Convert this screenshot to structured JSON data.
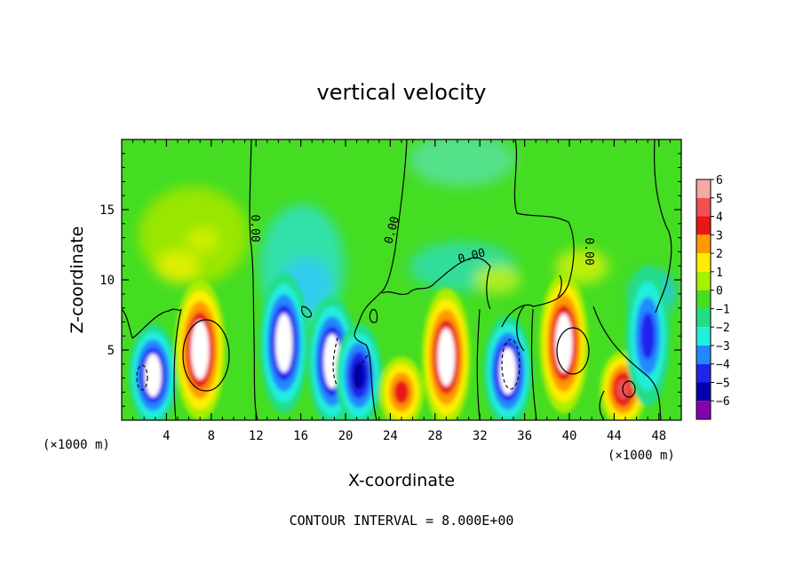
{
  "chart_data": {
    "type": "heatmap",
    "title": "vertical velocity",
    "xlabel": "X-coordinate",
    "ylabel": "Z-coordinate",
    "x_unit": "(×1000 m)",
    "x_ticks": [
      4,
      8,
      12,
      16,
      20,
      24,
      28,
      32,
      36,
      40,
      44,
      48
    ],
    "y_ticks": [
      5,
      10,
      15
    ],
    "xlim": [
      0,
      50
    ],
    "ylim": [
      0,
      20
    ],
    "colorbar": {
      "levels": [
        6,
        5,
        4,
        3,
        2,
        1,
        0,
        -1,
        -2,
        -3,
        -4,
        -5,
        -6
      ],
      "labels": [
        "6",
        "5",
        "4",
        "3",
        "2",
        "1",
        "0",
        "−1",
        "−2",
        "−3",
        "−4",
        "−5",
        "−6"
      ],
      "colors": [
        "#f4a8a8",
        "#f05050",
        "#e81818",
        "#ff9900",
        "#ffee00",
        "#aaee00",
        "#44dd22",
        "#22dd88",
        "#22eedd",
        "#2288ff",
        "#2222ee",
        "#0000aa",
        "#8800aa"
      ]
    },
    "contour_labels": [
      "0.00",
      "0.00",
      "0.00",
      "0.00",
      "0.00"
    ],
    "features": [
      {
        "x": 2.8,
        "z": 3.2,
        "w": -6
      },
      {
        "x": 7.0,
        "z": 5.0,
        "w": 7
      },
      {
        "x": 14.5,
        "z": 5.5,
        "w": -6
      },
      {
        "x": 18.8,
        "z": 4.2,
        "w": -6
      },
      {
        "x": 21.2,
        "z": 3.2,
        "w": -5
      },
      {
        "x": 25.0,
        "z": 2.0,
        "w": 4
      },
      {
        "x": 29.0,
        "z": 4.5,
        "w": 6
      },
      {
        "x": 34.5,
        "z": 3.5,
        "w": -6
      },
      {
        "x": 39.5,
        "z": 5.5,
        "w": 6
      },
      {
        "x": 44.8,
        "z": 2.2,
        "w": 5
      },
      {
        "x": 47.0,
        "z": 6.0,
        "w": -4
      },
      {
        "x": 6.5,
        "z": 13.0,
        "w": 1
      },
      {
        "x": 16.5,
        "z": 11.5,
        "w": -2
      },
      {
        "x": 31.0,
        "z": 16.0,
        "w": -1
      },
      {
        "x": 39.5,
        "z": 12.0,
        "w": 1
      }
    ],
    "footer": "CONTOUR INTERVAL = 8.000E+00"
  }
}
